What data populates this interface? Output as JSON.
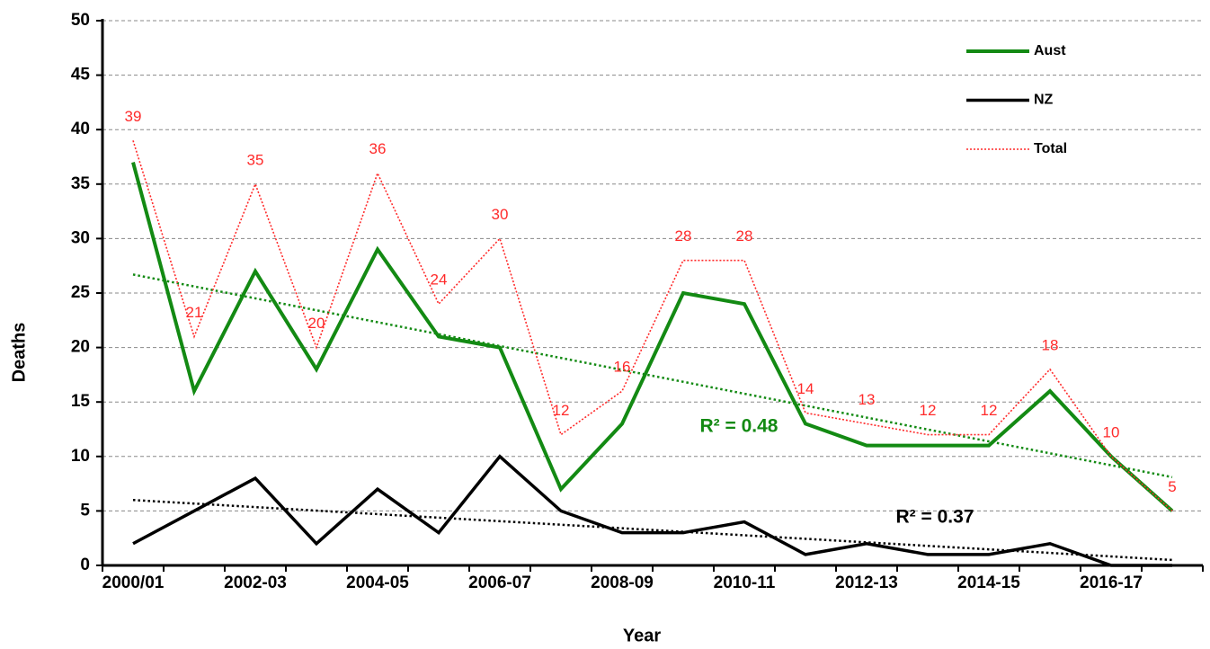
{
  "chart_data": {
    "type": "line",
    "x_label": "Year",
    "y_label": "Deaths",
    "categories": [
      "2000/01",
      null,
      "2002-03",
      null,
      "2004-05",
      null,
      "2006-07",
      null,
      "2008-09",
      null,
      "2010-11",
      null,
      "2012-13",
      null,
      "2014-15",
      null,
      "2016-17",
      null
    ],
    "series": [
      {
        "name": "Aust",
        "color": "#138a13",
        "line_style": "solid",
        "width": 4,
        "values": [
          37,
          16,
          27,
          18,
          29,
          21,
          20,
          7,
          13,
          25,
          24,
          13,
          11,
          11,
          11,
          16,
          10,
          5
        ]
      },
      {
        "name": "NZ",
        "color": "#000000",
        "line_style": "solid",
        "width": 3.5,
        "values": [
          2,
          5,
          8,
          2,
          7,
          3,
          10,
          5,
          3,
          3,
          4,
          1,
          2,
          1,
          1,
          2,
          0,
          0
        ]
      },
      {
        "name": "Total",
        "color": "#ff2a2a",
        "line_style": "dotted",
        "width": 1.6,
        "data_labels": true,
        "values": [
          39,
          21,
          35,
          20,
          36,
          24,
          30,
          12,
          16,
          28,
          28,
          14,
          13,
          12,
          12,
          18,
          10,
          5
        ]
      }
    ],
    "trendlines": [
      {
        "series": "Aust",
        "color": "#138a13",
        "start": 26.7,
        "end": 8.1,
        "label": "R² = 0.48"
      },
      {
        "series": "NZ",
        "color": "#000000",
        "start": 6.0,
        "end": 0.5,
        "label": "R² = 0.37"
      }
    ],
    "ylim": [
      0,
      50
    ],
    "yticks": [
      0,
      5,
      10,
      15,
      20,
      25,
      30,
      35,
      40,
      45,
      50
    ],
    "grid": true,
    "legend": "upper right"
  }
}
